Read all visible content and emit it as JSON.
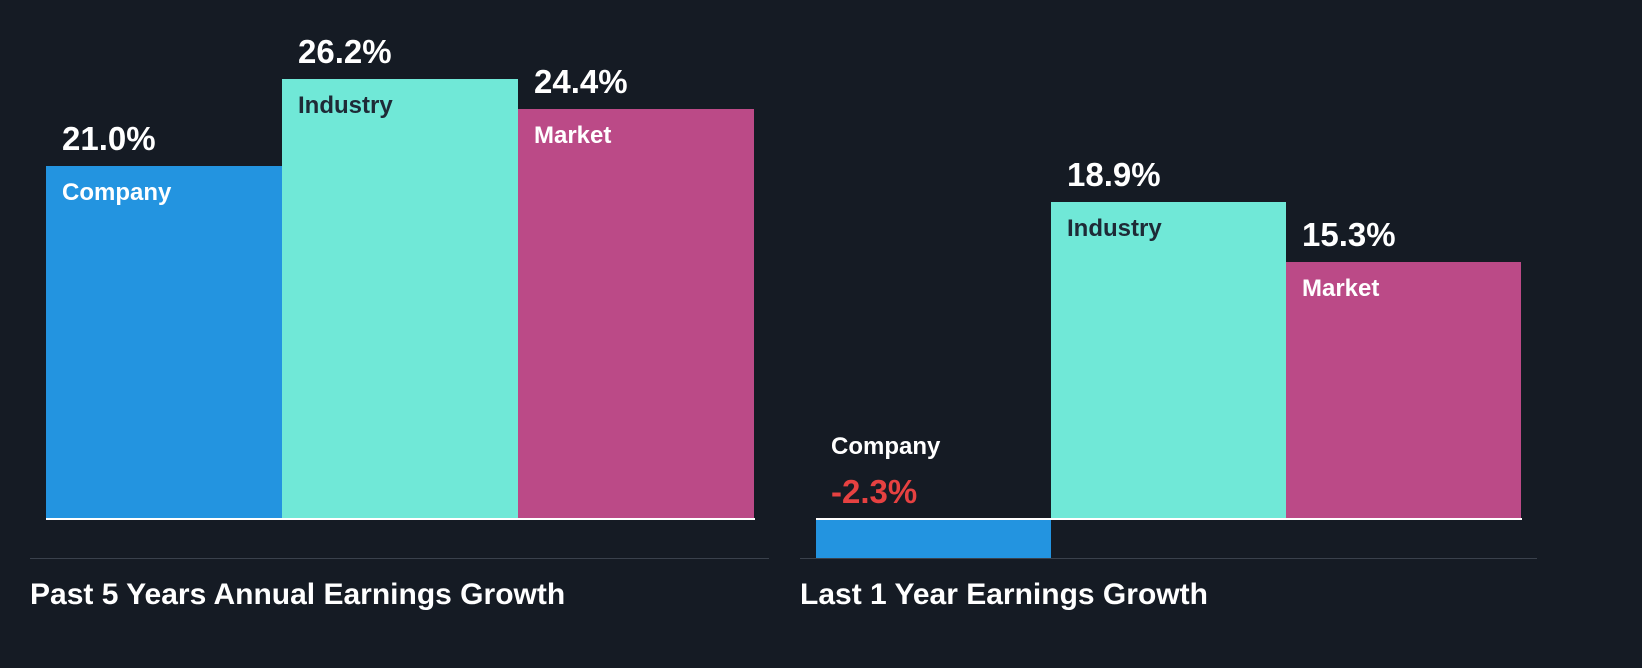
{
  "chart_data": [
    {
      "type": "bar",
      "title": "Past 5 Years Annual Earnings Growth",
      "categories": [
        "Company",
        "Industry",
        "Market"
      ],
      "values": [
        21.0,
        26.2,
        24.4
      ],
      "value_labels": [
        "21.0%",
        "26.2%",
        "24.4%"
      ],
      "ylim": [
        0,
        26.2
      ]
    },
    {
      "type": "bar",
      "title": "Last 1 Year Earnings Growth",
      "categories": [
        "Company",
        "Industry",
        "Market"
      ],
      "values": [
        -2.3,
        18.9,
        15.3
      ],
      "value_labels": [
        "-2.3%",
        "18.9%",
        "15.3%"
      ],
      "ylim": [
        -2.3,
        26.2
      ]
    }
  ],
  "colors": {
    "background": "#151b24",
    "Company": "#2394e0",
    "Industry": "#70e8d7",
    "Market": "#bb4a87",
    "negative_value": "#e64141",
    "text_light": "#ffffff",
    "text_dark": "#1e2a36"
  }
}
